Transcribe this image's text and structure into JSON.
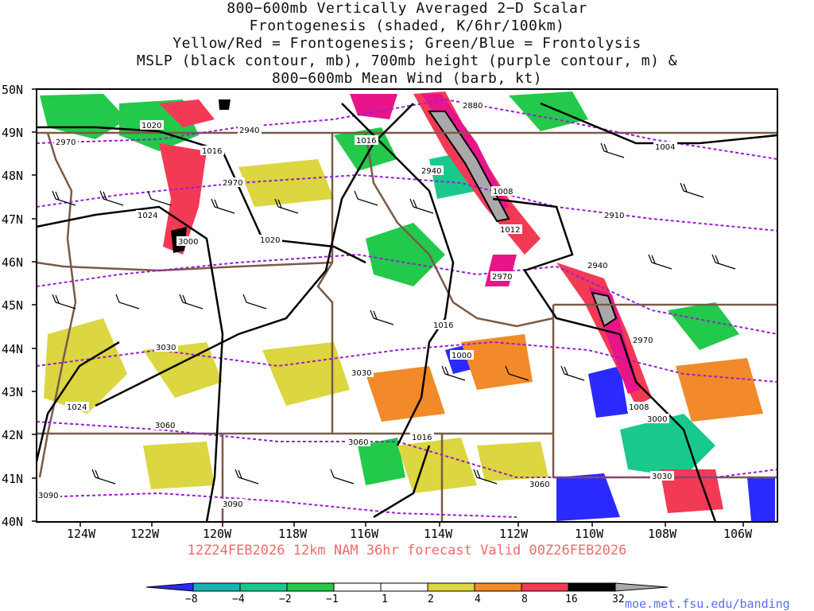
{
  "title_lines": [
    "800−600mb Vertically Averaged 2−D Scalar",
    "Frontogenesis (shaded, K/6hr/100km)",
    "Yellow/Red = Frontogenesis;  Green/Blue = Frontolysis",
    "MSLP (black contour, mb), 700mb height (purple contour, m) &",
    "800−600mb Mean Wind (barb, kt)"
  ],
  "lat_labels": [
    "50N",
    "49N",
    "48N",
    "47N",
    "46N",
    "45N",
    "44N",
    "43N",
    "42N",
    "41N",
    "40N"
  ],
  "lon_labels": [
    "124W",
    "122W",
    "120W",
    "118W",
    "116W",
    "114W",
    "112W",
    "110W",
    "108W",
    "106W"
  ],
  "footer": "12Z24FEB2026 12km NAM 36hr forecast Valid 00Z26FEB2026",
  "credit": "moe.met.fsu.edu/banding",
  "colorbar": {
    "labels": [
      "−8",
      "−4",
      "−2",
      "−1",
      "1",
      "2",
      "4",
      "8",
      "16",
      "32"
    ],
    "colors": [
      "#2a2aff",
      "#17b3b3",
      "#19c98c",
      "#22c94a",
      "#ffffff",
      "#dcd640",
      "#f28a2a",
      "#f23a55",
      "#e8148a",
      "#000000",
      "#a9a9a9"
    ]
  },
  "colors": {
    "mslp_contour": "#000000",
    "height_contour": "#9a1fd1",
    "borders": "#7a5a48",
    "frontogenesis_yellow": "#dcd640",
    "frontogenesis_orange": "#f28a2a",
    "frontogenesis_red": "#f23a55",
    "frontogenesis_magenta": "#e8148a",
    "frontolysis_green": "#22c94a",
    "frontolysis_teal": "#19c98c",
    "frontolysis_blue": "#2a2aff"
  },
  "mslp_labels": [
    "1020",
    "1016",
    "1016",
    "1004",
    "1008",
    "1012",
    "1024",
    "1020",
    "1016",
    "1000",
    "1008",
    "1024",
    "1016"
  ],
  "height_labels": [
    "2880",
    "2940",
    "2940",
    "2970",
    "2970",
    "2910",
    "3000",
    "2940",
    "2970",
    "2970",
    "3030",
    "3030",
    "3000",
    "3060",
    "3060",
    "3060",
    "3030",
    "3090",
    "3090"
  ]
}
